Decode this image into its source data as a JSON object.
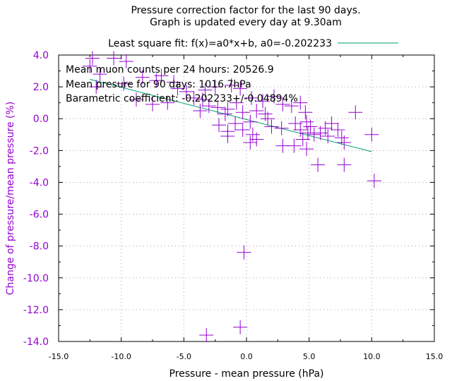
{
  "chart_data": {
    "type": "scatter",
    "title": "Pressure correction factor for the last 90 days.",
    "subtitle": "Graph is updated every day at 9.30am",
    "xlabel": "Pressure - mean pressure (hPa)",
    "ylabel": "Change of pressure/mean pressure (%)",
    "xlim": [
      -15,
      15
    ],
    "ylim": [
      -14,
      4
    ],
    "x_ticks": [
      "-15.0",
      "-10.0",
      "-5.0",
      "0.0",
      "5.0",
      "10.0",
      "15.0"
    ],
    "y_ticks": [
      "4.0",
      "2.0",
      "0.0",
      "-2.0",
      "-4.0",
      "-6.0",
      "-8.0",
      "-10.0",
      "-12.0",
      "-14.0"
    ],
    "grid": true,
    "legend_position": "top",
    "annotations": [
      "Mean muon counts per 24 hours: 20526.9",
      "Mean presure for 90 days: 1016.7hPa",
      "Barametric coefficient: -0.202233+/-0.04894%"
    ],
    "fit": {
      "label": "Least square fit: f(x)=a0*x+b, a0=-0.202233",
      "slope": -0.202233,
      "intercept": -0.05,
      "x_range": [
        -12.5,
        10.0
      ]
    },
    "series": [
      {
        "marker": "plus",
        "points": [
          [
            -12.3,
            3.8
          ],
          [
            -12.5,
            3.3
          ],
          [
            -10.6,
            3.8
          ],
          [
            -9.6,
            3.6
          ],
          [
            -11.7,
            2.8
          ],
          [
            -12.0,
            2.0
          ],
          [
            -9.8,
            2.2
          ],
          [
            -8.3,
            2.6
          ],
          [
            -7.2,
            2.4
          ],
          [
            -6.8,
            2.7
          ],
          [
            -5.8,
            2.3
          ],
          [
            -5.5,
            1.9
          ],
          [
            -4.8,
            1.7
          ],
          [
            -3.3,
            1.8
          ],
          [
            -2.5,
            2.0
          ],
          [
            -1.2,
            2.1
          ],
          [
            -0.5,
            1.9
          ],
          [
            -8.8,
            1.2
          ],
          [
            -7.5,
            0.9
          ],
          [
            -6.3,
            1.0
          ],
          [
            -4.2,
            1.3
          ],
          [
            -3.5,
            1.2
          ],
          [
            -3.0,
            0.8
          ],
          [
            -3.7,
            0.5
          ],
          [
            -2.3,
            0.7
          ],
          [
            -1.5,
            0.6
          ],
          [
            -0.8,
            1.0
          ],
          [
            -1.7,
            0.3
          ],
          [
            -0.3,
            0.4
          ],
          [
            0.4,
            1.3
          ],
          [
            1.3,
            1.1
          ],
          [
            2.2,
            1.4
          ],
          [
            2.9,
            0.9
          ],
          [
            3.6,
            0.8
          ],
          [
            4.3,
            1.0
          ],
          [
            0.8,
            0.5
          ],
          [
            1.5,
            0.3
          ],
          [
            1.7,
            0.0
          ],
          [
            0.3,
            -0.2
          ],
          [
            -0.9,
            -0.3
          ],
          [
            -2.2,
            -0.4
          ],
          [
            -1.5,
            -0.8
          ],
          [
            -1.5,
            -1.1
          ],
          [
            -0.3,
            -0.7
          ],
          [
            0.5,
            -1.0
          ],
          [
            0.3,
            -1.5
          ],
          [
            0.8,
            -1.3
          ],
          [
            2.0,
            -0.5
          ],
          [
            2.8,
            -0.6
          ],
          [
            3.9,
            -0.3
          ],
          [
            4.3,
            -0.7
          ],
          [
            4.8,
            -0.2
          ],
          [
            5.1,
            -0.5
          ],
          [
            4.9,
            -0.9
          ],
          [
            4.5,
            -1.3
          ],
          [
            5.4,
            -1.0
          ],
          [
            5.9,
            -0.9
          ],
          [
            6.3,
            -0.6
          ],
          [
            6.8,
            -0.3
          ],
          [
            7.3,
            -0.7
          ],
          [
            7.6,
            -1.2
          ],
          [
            7.8,
            -1.5
          ],
          [
            6.5,
            -1.1
          ],
          [
            8.7,
            0.4
          ],
          [
            4.7,
            0.4
          ],
          [
            3.8,
            -1.7
          ],
          [
            2.9,
            -1.7
          ],
          [
            4.8,
            -1.9
          ],
          [
            5.7,
            -2.9
          ],
          [
            7.8,
            -2.9
          ],
          [
            10.0,
            -1.0
          ],
          [
            10.2,
            -3.9
          ],
          [
            -0.2,
            -8.4
          ],
          [
            -0.5,
            -13.1
          ],
          [
            -3.2,
            -13.6
          ]
        ]
      }
    ]
  }
}
